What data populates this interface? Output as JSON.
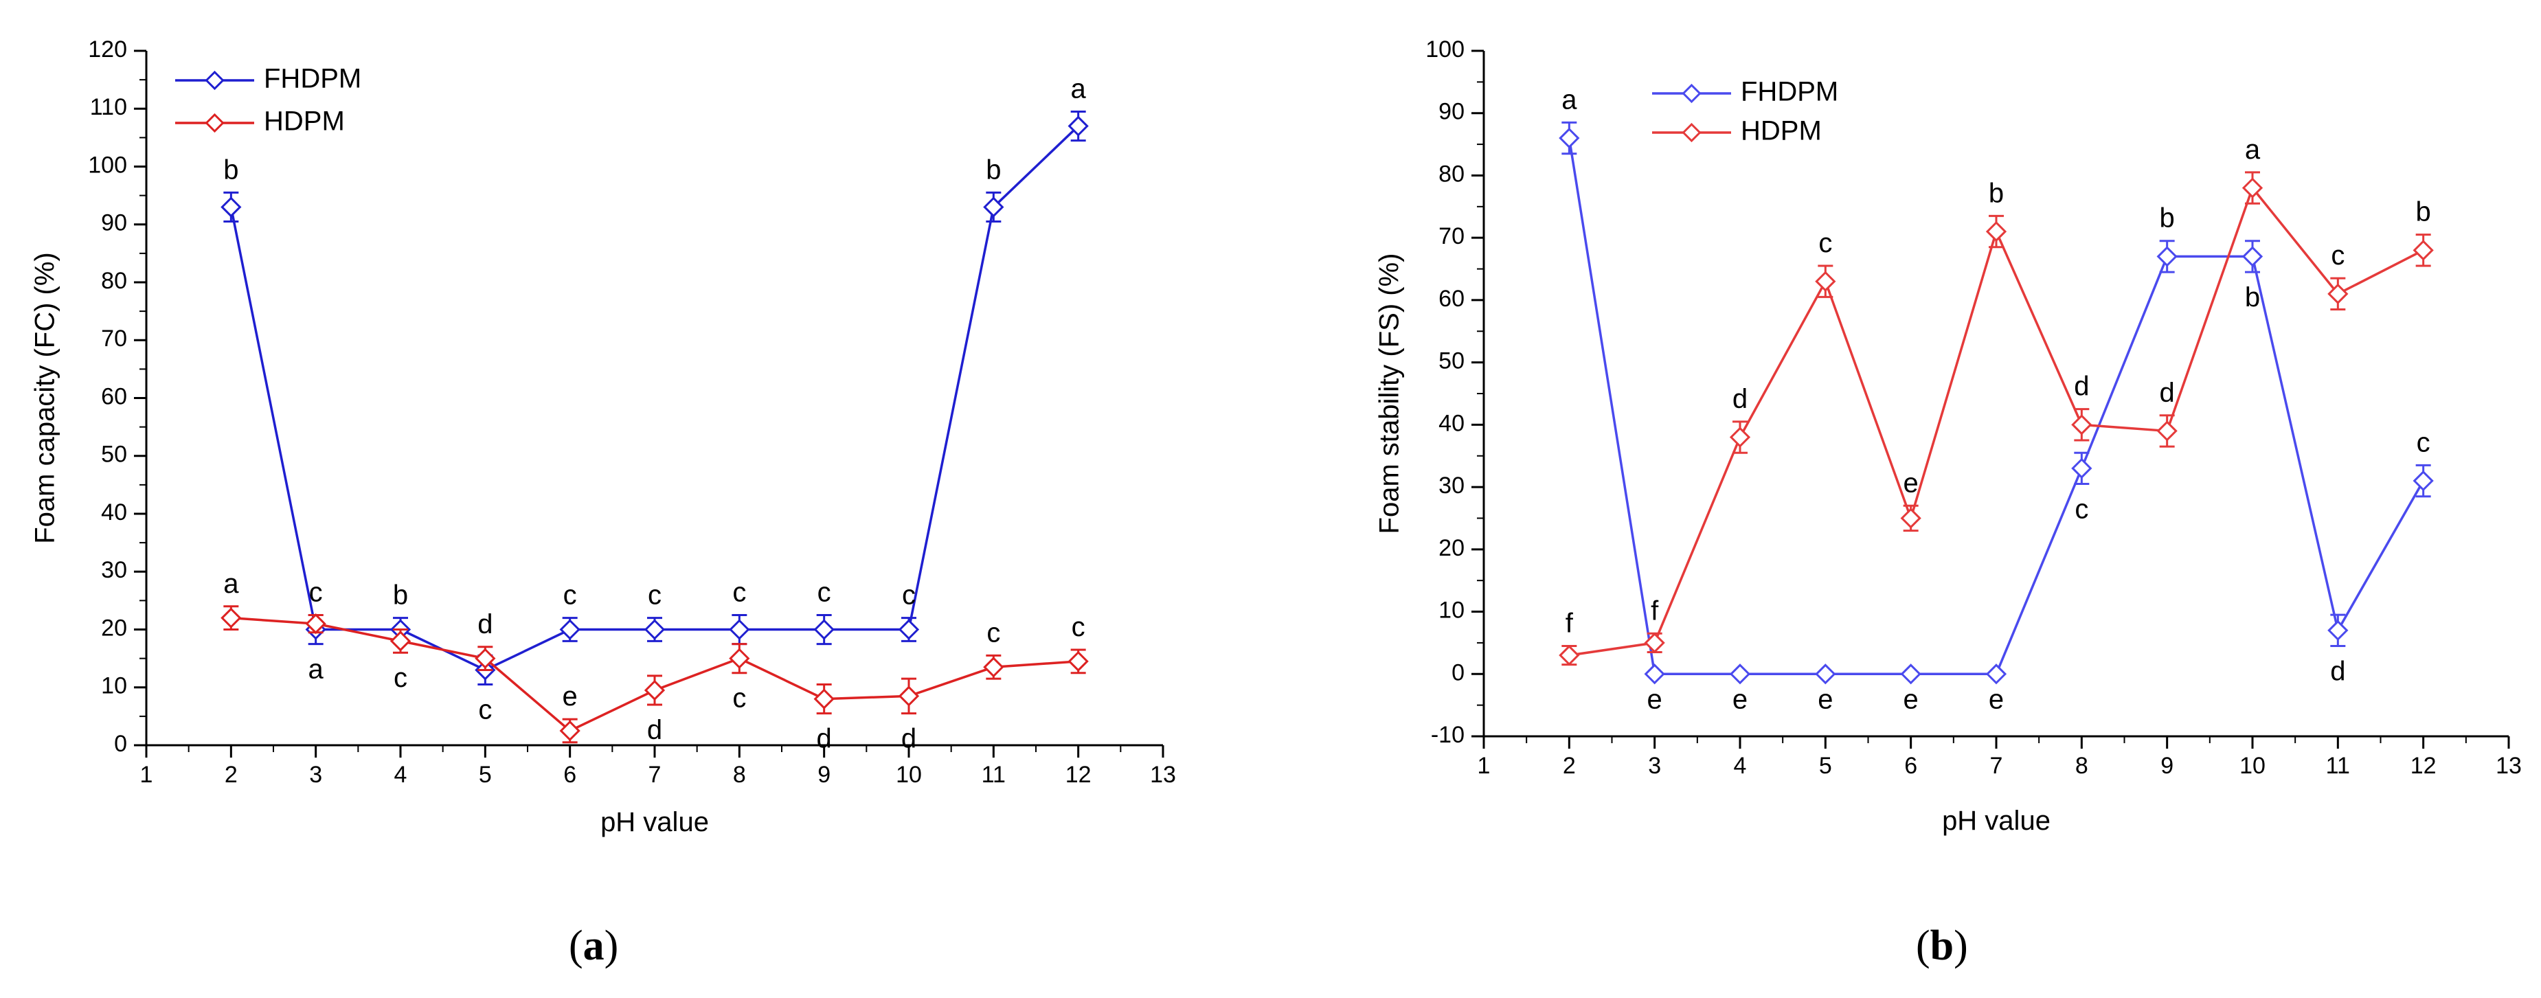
{
  "chart_data": [
    {
      "type": "line",
      "panel": "a",
      "title": "",
      "xlabel": "pH value",
      "ylabel": "Foam capacity (FC) (%)",
      "xlim": [
        1,
        13
      ],
      "ylim": [
        0,
        120
      ],
      "xticks": [
        1,
        2,
        3,
        4,
        5,
        6,
        7,
        8,
        9,
        10,
        11,
        12,
        13
      ],
      "yticks": [
        0,
        10,
        20,
        30,
        40,
        50,
        60,
        70,
        80,
        90,
        100,
        110,
        120
      ],
      "legend_position": "top-left",
      "x": [
        2,
        3,
        4,
        5,
        6,
        7,
        8,
        9,
        10,
        11,
        12
      ],
      "series": [
        {
          "name": "FHDPM",
          "color": "#1f1fd0",
          "values": [
            93,
            20,
            20,
            13,
            20,
            20,
            20,
            20,
            20,
            93,
            107
          ],
          "errors": [
            2.5,
            2.5,
            2,
            2.5,
            2,
            2,
            2.5,
            2.5,
            2,
            2.5,
            2.5
          ],
          "letters": [
            "b",
            "a",
            "b",
            "c",
            "c",
            "c",
            "c",
            "c",
            "c",
            "b",
            "a"
          ],
          "letter_pos": [
            "above",
            "below",
            "above",
            "below",
            "above",
            "above",
            "above",
            "above",
            "above",
            "above",
            "above"
          ]
        },
        {
          "name": "HDPM",
          "color": "#dd2222",
          "values": [
            22,
            21,
            18,
            15,
            2.5,
            9.5,
            15,
            8,
            8.5,
            13.5,
            14.5
          ],
          "errors": [
            2,
            1.5,
            2,
            2,
            2,
            2.5,
            2.5,
            2.5,
            3,
            2,
            2
          ],
          "letters": [
            "a",
            "c",
            "c",
            "d",
            "e",
            "d",
            "c",
            "d",
            "d",
            "c",
            "c"
          ],
          "letter_pos": [
            "above",
            "above",
            "below",
            "above",
            "above",
            "below",
            "below",
            "below",
            "below",
            "above",
            "above"
          ]
        }
      ]
    },
    {
      "type": "line",
      "panel": "b",
      "title": "",
      "xlabel": "pH value",
      "ylabel": "Foam stability (FS) (%)",
      "xlim": [
        1,
        13
      ],
      "ylim": [
        -10,
        100
      ],
      "xticks": [
        1,
        2,
        3,
        4,
        5,
        6,
        7,
        8,
        9,
        10,
        11,
        12,
        13
      ],
      "yticks": [
        -10,
        0,
        10,
        20,
        30,
        40,
        50,
        60,
        70,
        80,
        90,
        100
      ],
      "legend_position": "top-left",
      "x": [
        2,
        3,
        4,
        5,
        6,
        7,
        8,
        9,
        10,
        11,
        12
      ],
      "series": [
        {
          "name": "FHDPM",
          "color": "#4a4aee",
          "values": [
            86,
            0,
            0,
            0,
            0,
            0,
            33,
            67,
            67,
            7,
            31
          ],
          "errors": [
            2.5,
            0,
            0,
            0,
            0,
            0,
            2.5,
            2.5,
            2.5,
            2.5,
            2.5
          ],
          "letters": [
            "a",
            "e",
            "e",
            "e",
            "e",
            "e",
            "c",
            "b",
            "b",
            "d",
            "c"
          ],
          "letter_pos": [
            "above",
            "below",
            "below",
            "below",
            "below",
            "below",
            "below",
            "above",
            "below",
            "below",
            "above"
          ]
        },
        {
          "name": "HDPM",
          "color": "#e53a3a",
          "values": [
            3,
            5,
            38,
            63,
            25,
            71,
            40,
            39,
            78,
            61,
            68
          ],
          "errors": [
            1.5,
            1.5,
            2.5,
            2.5,
            2,
            2.5,
            2.5,
            2.5,
            2.5,
            2.5,
            2.5
          ],
          "letters": [
            "f",
            "f",
            "d",
            "c",
            "e",
            "b",
            "d",
            "d",
            "a",
            "c",
            "b"
          ],
          "letter_pos": [
            "above",
            "above",
            "above",
            "above",
            "above",
            "above",
            "above",
            "above",
            "above",
            "above",
            "above"
          ]
        }
      ]
    }
  ],
  "captions": [
    "a",
    "b"
  ]
}
